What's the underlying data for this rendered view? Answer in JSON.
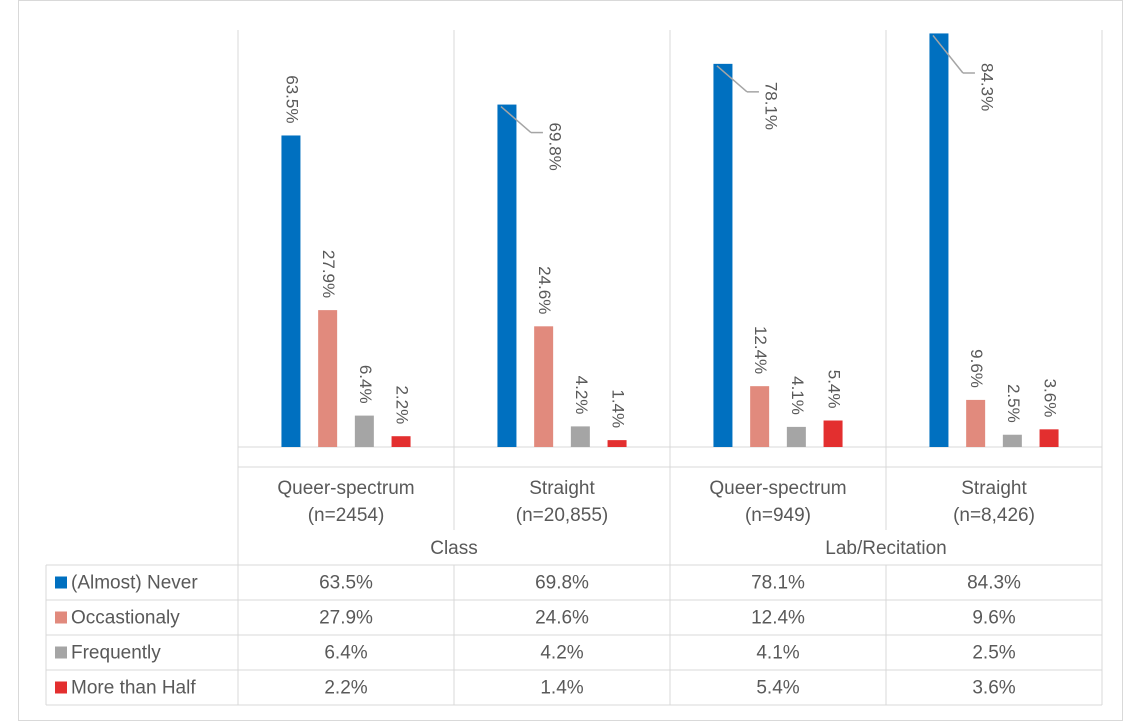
{
  "chart_data": {
    "type": "bar",
    "categories": [
      [
        "Queer-spectrum",
        "(n=2454)"
      ],
      [
        "Straight",
        "(n=20,855)"
      ],
      [
        "Queer-spectrum",
        "(n=949)"
      ],
      [
        "Straight",
        "(n=8,426)"
      ]
    ],
    "groups": [
      "Class",
      "Lab/Recitation"
    ],
    "ylim": [
      0,
      85
    ],
    "series": [
      {
        "name": "(Almost) Never",
        "color": "#0070c0",
        "values": [
          63.5,
          69.8,
          78.1,
          84.3
        ],
        "value_labels": [
          "63.5%",
          "69.8%",
          "78.1%",
          "84.3%"
        ]
      },
      {
        "name": "Occastionaly",
        "color": "#e18a7d",
        "values": [
          27.9,
          24.6,
          12.4,
          9.6
        ],
        "value_labels": [
          "27.9%",
          "24.6%",
          "12.4%",
          "9.6%"
        ]
      },
      {
        "name": "Frequently",
        "color": "#a5a5a5",
        "values": [
          6.4,
          4.2,
          4.1,
          2.5
        ],
        "value_labels": [
          "6.4%",
          "4.2%",
          "4.1%",
          "2.5%"
        ]
      },
      {
        "name": "More than Half",
        "color": "#e32f2f",
        "values": [
          2.2,
          1.4,
          5.4,
          3.6
        ],
        "value_labels": [
          "2.2%",
          "1.4%",
          "5.4%",
          "3.6%"
        ]
      }
    ]
  }
}
